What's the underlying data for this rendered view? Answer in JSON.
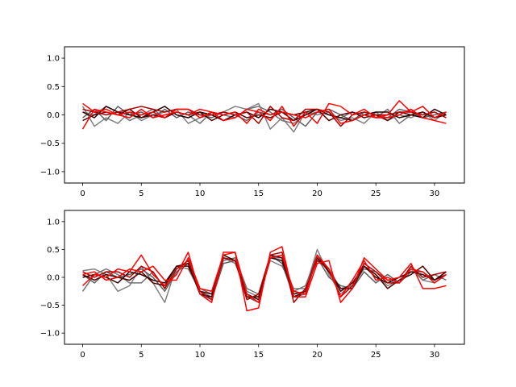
{
  "chart_data": [
    {
      "type": "line",
      "title": "",
      "xlabel": "",
      "ylabel": "",
      "xlim": [
        -1.55,
        32.55
      ],
      "ylim": [
        -1.2,
        1.2
      ],
      "grid": false,
      "xticks": [
        0,
        5,
        10,
        15,
        20,
        25,
        30
      ],
      "xtick_labels": [
        "0",
        "5",
        "10",
        "15",
        "20",
        "25",
        "30"
      ],
      "yticks": [
        -1.0,
        -0.5,
        0.0,
        0.5,
        1.0
      ],
      "ytick_labels": [
        "−1.0",
        "−0.5",
        "0.0",
        "0.5",
        "1.0"
      ],
      "x": [
        0,
        1,
        2,
        3,
        4,
        5,
        6,
        7,
        8,
        9,
        10,
        11,
        12,
        13,
        14,
        15,
        16,
        17,
        18,
        19,
        20,
        21,
        22,
        23,
        24,
        25,
        26,
        27,
        28,
        29,
        30,
        31
      ],
      "series": [
        {
          "color": "#808080",
          "values": [
            0.15,
            -0.2,
            -0.05,
            -0.15,
            0.05,
            -0.1,
            0.0,
            0.05,
            0.1,
            -0.15,
            -0.05,
            0.0,
            0.05,
            0.15,
            0.1,
            0.2,
            -0.25,
            -0.05,
            -0.3,
            0.05,
            0.0,
            0.05,
            -0.1,
            -0.05,
            -0.15,
            0.05,
            -0.1,
            0.0,
            -0.05,
            0.05,
            -0.1,
            0.05
          ]
        },
        {
          "color": "#707070",
          "values": [
            0.05,
            0.0,
            0.15,
            0.05,
            -0.1,
            0.0,
            0.1,
            -0.05,
            0.05,
            0.0,
            -0.15,
            0.05,
            0.0,
            -0.05,
            0.1,
            0.15,
            0.05,
            -0.1,
            -0.15,
            0.0,
            0.05,
            0.0,
            -0.05,
            0.05,
            0.0,
            -0.05,
            0.1,
            -0.15,
            0.0,
            0.05,
            -0.05,
            0.0
          ]
        },
        {
          "color": "#606060",
          "values": [
            -0.05,
            0.1,
            -0.1,
            0.15,
            0.0,
            0.05,
            -0.05,
            0.1,
            -0.05,
            0.05,
            0.0,
            -0.05,
            0.05,
            0.0,
            -0.1,
            0.05,
            0.0,
            0.1,
            -0.05,
            -0.2,
            0.05,
            0.1,
            0.0,
            -0.1,
            0.05,
            0.0,
            -0.05,
            0.1,
            0.05,
            -0.05,
            0.0,
            0.05
          ]
        },
        {
          "color": "#2a0000",
          "values": [
            0.05,
            -0.05,
            0.15,
            0.05,
            0.0,
            -0.05,
            0.05,
            0.15,
            0.0,
            -0.05,
            0.05,
            0.0,
            -0.1,
            0.0,
            0.05,
            -0.05,
            0.1,
            0.05,
            -0.1,
            0.0,
            0.1,
            0.0,
            -0.05,
            -0.1,
            0.0,
            0.05,
            0.05,
            -0.05,
            0.0,
            -0.05,
            0.1,
            0.0
          ]
        },
        {
          "color": "#550000",
          "values": [
            -0.1,
            0.0,
            0.05,
            0.0,
            0.1,
            -0.05,
            0.0,
            -0.05,
            0.05,
            0.0,
            0.05,
            -0.1,
            0.0,
            0.05,
            -0.05,
            0.0,
            -0.05,
            0.05,
            0.0,
            0.05,
            0.1,
            -0.1,
            0.0,
            0.05,
            -0.05,
            0.0,
            -0.1,
            0.05,
            0.0,
            0.05,
            -0.05,
            0.0
          ]
        },
        {
          "color": "#aa0000",
          "values": [
            0.1,
            0.05,
            0.0,
            0.05,
            0.1,
            0.15,
            0.1,
            0.05,
            0.1,
            0.1,
            0.0,
            0.0,
            0.05,
            0.0,
            0.05,
            -0.15,
            0.15,
            -0.05,
            -0.1,
            0.1,
            0.1,
            0.05,
            -0.2,
            0.0,
            0.05,
            0.0,
            0.0,
            0.05,
            0.05,
            0.0,
            0.05,
            -0.05
          ]
        },
        {
          "color": "#ff0000",
          "values": [
            0.2,
            0.05,
            0.1,
            0.0,
            0.05,
            0.0,
            0.05,
            -0.05,
            0.1,
            0.1,
            -0.05,
            0.05,
            -0.1,
            -0.05,
            0.1,
            0.05,
            -0.1,
            0.15,
            -0.2,
            0.05,
            -0.15,
            0.2,
            0.15,
            0.0,
            0.1,
            -0.05,
            0.0,
            0.25,
            0.05,
            0.15,
            -0.05,
            0.05
          ]
        },
        {
          "color": "#ff0000",
          "values": [
            -0.25,
            0.1,
            0.05,
            0.0,
            -0.05,
            0.1,
            -0.05,
            0.0,
            0.05,
            0.0,
            0.1,
            0.05,
            0.0,
            0.05,
            -0.15,
            0.1,
            0.0,
            0.05,
            0.0,
            -0.05,
            0.05,
            0.1,
            -0.15,
            -0.1,
            0.0,
            -0.05,
            -0.05,
            0.0,
            0.1,
            -0.05,
            -0.1,
            -0.15
          ]
        }
      ]
    },
    {
      "type": "line",
      "title": "",
      "xlabel": "",
      "ylabel": "",
      "xlim": [
        -1.55,
        32.55
      ],
      "ylim": [
        -1.2,
        1.2
      ],
      "grid": false,
      "xticks": [
        0,
        5,
        10,
        15,
        20,
        25,
        30
      ],
      "xtick_labels": [
        "0",
        "5",
        "10",
        "15",
        "20",
        "25",
        "30"
      ],
      "yticks": [
        -1.0,
        -0.5,
        0.0,
        0.5,
        1.0
      ],
      "ytick_labels": [
        "−1.0",
        "−0.5",
        "0.0",
        "0.5",
        "1.0"
      ],
      "x": [
        0,
        1,
        2,
        3,
        4,
        5,
        6,
        7,
        8,
        9,
        10,
        11,
        12,
        13,
        14,
        15,
        16,
        17,
        18,
        19,
        20,
        21,
        22,
        23,
        24,
        25,
        26,
        27,
        28,
        29,
        30,
        31
      ],
      "series": [
        {
          "color": "#808080",
          "values": [
            0.12,
            0.15,
            0.05,
            -0.25,
            -0.15,
            0.2,
            -0.1,
            -0.45,
            0.2,
            0.15,
            -0.25,
            -0.35,
            0.35,
            0.25,
            -0.25,
            -0.35,
            0.3,
            0.2,
            -0.2,
            -0.2,
            0.5,
            0.05,
            -0.3,
            -0.1,
            0.2,
            0.05,
            -0.15,
            -0.05,
            0.15,
            -0.05,
            -0.1,
            0.05
          ]
        },
        {
          "color": "#707070",
          "values": [
            -0.25,
            0.05,
            0.15,
            0.05,
            -0.1,
            -0.1,
            0.1,
            -0.2,
            0.15,
            0.3,
            -0.2,
            -0.3,
            0.3,
            0.35,
            -0.2,
            -0.3,
            0.35,
            0.35,
            -0.25,
            -0.15,
            0.4,
            0.15,
            -0.2,
            -0.15,
            0.15,
            0.1,
            -0.05,
            -0.1,
            0.2,
            -0.05,
            0.05,
            -0.05
          ]
        },
        {
          "color": "#606060",
          "values": [
            0.05,
            -0.1,
            0.1,
            0.0,
            0.05,
            0.15,
            0.0,
            -0.25,
            0.1,
            0.25,
            -0.3,
            -0.4,
            0.25,
            0.3,
            -0.35,
            -0.45,
            0.4,
            0.25,
            -0.35,
            -0.3,
            0.35,
            0.0,
            -0.15,
            -0.2,
            0.1,
            -0.1,
            0.05,
            -0.1,
            0.1,
            0.1,
            -0.05,
            0.1
          ]
        },
        {
          "color": "#2a0000",
          "values": [
            0.0,
            0.05,
            0.0,
            -0.1,
            0.1,
            0.05,
            -0.05,
            -0.1,
            0.2,
            0.25,
            -0.3,
            -0.35,
            0.4,
            0.3,
            -0.3,
            -0.4,
            0.35,
            0.3,
            -0.3,
            -0.25,
            0.4,
            0.1,
            -0.25,
            -0.1,
            0.2,
            0.0,
            -0.1,
            0.0,
            0.1,
            0.05,
            -0.05,
            0.05
          ]
        },
        {
          "color": "#550000",
          "values": [
            0.05,
            -0.05,
            0.05,
            0.0,
            -0.05,
            0.1,
            -0.1,
            -0.15,
            0.2,
            0.2,
            -0.25,
            -0.3,
            0.35,
            0.3,
            -0.35,
            -0.35,
            0.4,
            0.35,
            -0.35,
            -0.25,
            0.35,
            0.1,
            -0.2,
            -0.2,
            0.2,
            0.05,
            -0.2,
            -0.05,
            0.05,
            0.2,
            -0.05,
            0.1
          ]
        },
        {
          "color": "#aa0000",
          "values": [
            0.1,
            0.0,
            0.1,
            0.1,
            0.0,
            0.2,
            0.1,
            -0.2,
            0.15,
            0.3,
            -0.25,
            -0.4,
            0.35,
            0.3,
            -0.4,
            -0.3,
            0.4,
            0.45,
            -0.45,
            -0.2,
            0.3,
            0.15,
            -0.35,
            -0.15,
            0.25,
            0.1,
            -0.1,
            -0.1,
            0.2,
            0.0,
            0.05,
            0.1
          ]
        },
        {
          "color": "#ff0000",
          "values": [
            -0.15,
            0.05,
            0.0,
            0.15,
            0.1,
            0.4,
            0.05,
            -0.15,
            0.05,
            0.45,
            -0.3,
            -0.45,
            0.45,
            0.45,
            -0.6,
            -0.55,
            0.45,
            0.55,
            -0.35,
            -0.35,
            0.25,
            0.3,
            -0.45,
            -0.2,
            0.35,
            0.15,
            -0.05,
            0.0,
            0.25,
            -0.2,
            -0.2,
            -0.15
          ]
        },
        {
          "color": "#ff0000",
          "values": [
            0.05,
            0.1,
            -0.05,
            0.0,
            0.15,
            0.1,
            0.2,
            -0.05,
            -0.05,
            0.35,
            -0.2,
            -0.25,
            0.4,
            0.45,
            -0.3,
            -0.45,
            0.35,
            0.4,
            -0.25,
            -0.3,
            0.4,
            0.15,
            -0.35,
            -0.05,
            0.3,
            -0.05,
            0.0,
            -0.1,
            0.15,
            0.1,
            -0.1,
            0.05
          ]
        }
      ]
    }
  ]
}
